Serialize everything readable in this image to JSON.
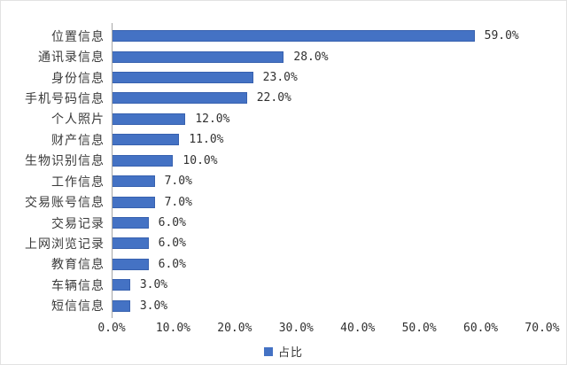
{
  "chart_data": {
    "type": "bar",
    "orientation": "horizontal",
    "title": "",
    "xlabel": "",
    "ylabel": "",
    "categories": [
      "位置信息",
      "通讯录信息",
      "身份信息",
      "手机号码信息",
      "个人照片",
      "财产信息",
      "生物识别信息",
      "工作信息",
      "交易账号信息",
      "交易记录",
      "上网浏览记录",
      "教育信息",
      "车辆信息",
      "短信信息"
    ],
    "values": [
      59,
      28,
      23,
      22,
      12,
      11,
      10,
      7,
      7,
      6,
      6,
      6,
      3,
      3
    ],
    "value_labels": [
      "59.0%",
      "28.0%",
      "23.0%",
      "22.0%",
      "12.0%",
      "11.0%",
      "10.0%",
      "7.0%",
      "7.0%",
      "6.0%",
      "6.0%",
      "6.0%",
      "3.0%",
      "3.0%"
    ],
    "xlim": [
      0,
      70
    ],
    "x_ticks": [
      {
        "value": 0,
        "label": "0.0%"
      },
      {
        "value": 10,
        "label": "10.0%"
      },
      {
        "value": 20,
        "label": "20.0%"
      },
      {
        "value": 30,
        "label": "30.0%"
      },
      {
        "value": 40,
        "label": "40.0%"
      },
      {
        "value": 50,
        "label": "50.0%"
      },
      {
        "value": 60,
        "label": "60.0%"
      },
      {
        "value": 70,
        "label": "70.0%"
      }
    ],
    "grid": false,
    "legend_label": "占比",
    "legend_position": "bottom-center",
    "bar_color": "#4472c4",
    "axis_line_color": "#a6a6a6"
  }
}
